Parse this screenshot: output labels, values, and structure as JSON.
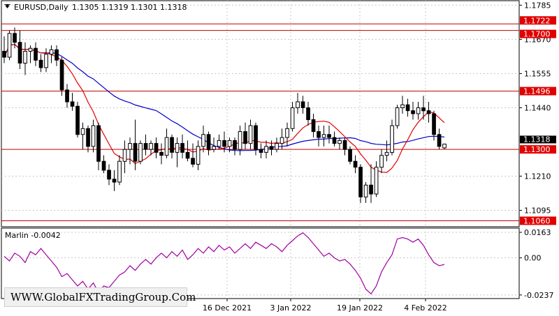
{
  "header": {
    "symbol_timeframe": "EURUSD,Daily",
    "ohlc": "1.1305 1.1319 1.1301 1.1318"
  },
  "indicator": {
    "title": "Marlin -0.0042",
    "levels": [
      "0.0163",
      "0.00",
      "-0.0237"
    ]
  },
  "price_axis": {
    "ticks": [
      "1.1785",
      "1.1670",
      "1.1555",
      "1.1440",
      "1.1210",
      "1.1095"
    ],
    "horizontal_level_tags": [
      "1.1722",
      "1.1700",
      "1.1496",
      "1.1300",
      "1.1060"
    ],
    "current_price_tag": "1.1318"
  },
  "time_axis": {
    "labels": [
      "16 Dec 2021",
      "3 Jan 2022",
      "19 Jan 2022",
      "4 Feb 2022"
    ]
  },
  "watermark": "WWW.GlobalFXTradingGroup.Com",
  "colors": {
    "background": "#ffffff",
    "grid": "#c8c8c8",
    "level_line": "#c00000",
    "level_tag": "#e00000",
    "fast_ma": "#e00000",
    "slow_ma": "#0000cc",
    "indicator_line": "#a000a0",
    "bull_candle": "#ffffff",
    "bear_candle": "#000000"
  },
  "chart_data": {
    "type": "candlestick",
    "symbol": "EURUSD",
    "timeframe": "Daily",
    "ylim": [
      1.104,
      1.18
    ],
    "horizontal_levels": [
      1.1722,
      1.17,
      1.1496,
      1.13,
      1.106
    ],
    "candles": [
      [
        1.163,
        1.168,
        1.159,
        1.161
      ],
      [
        1.161,
        1.17,
        1.16,
        1.169
      ],
      [
        1.169,
        1.171,
        1.164,
        1.166
      ],
      [
        1.166,
        1.17,
        1.157,
        1.159
      ],
      [
        1.159,
        1.166,
        1.155,
        1.163
      ],
      [
        1.163,
        1.165,
        1.159,
        1.164
      ],
      [
        1.164,
        1.166,
        1.158,
        1.16
      ],
      [
        1.16,
        1.162,
        1.156,
        1.1575
      ],
      [
        1.1575,
        1.164,
        1.156,
        1.162
      ],
      [
        1.162,
        1.165,
        1.159,
        1.1635
      ],
      [
        1.1635,
        1.165,
        1.158,
        1.16
      ],
      [
        1.16,
        1.161,
        1.148,
        1.15
      ],
      [
        1.15,
        1.152,
        1.144,
        1.146
      ],
      [
        1.146,
        1.149,
        1.143,
        1.1445
      ],
      [
        1.1445,
        1.146,
        1.134,
        1.135
      ],
      [
        1.135,
        1.139,
        1.13,
        1.137
      ],
      [
        1.137,
        1.138,
        1.129,
        1.131
      ],
      [
        1.131,
        1.14,
        1.129,
        1.138
      ],
      [
        1.138,
        1.139,
        1.123,
        1.126
      ],
      [
        1.126,
        1.128,
        1.122,
        1.123
      ],
      [
        1.123,
        1.125,
        1.118,
        1.12
      ],
      [
        1.12,
        1.123,
        1.116,
        1.119
      ],
      [
        1.119,
        1.128,
        1.118,
        1.126
      ],
      [
        1.126,
        1.133,
        1.122,
        1.13
      ],
      [
        1.13,
        1.134,
        1.125,
        1.132
      ],
      [
        1.132,
        1.14,
        1.123,
        1.126
      ],
      [
        1.126,
        1.133,
        1.125,
        1.132
      ],
      [
        1.132,
        1.135,
        1.128,
        1.13
      ],
      [
        1.13,
        1.133,
        1.128,
        1.132
      ],
      [
        1.132,
        1.134,
        1.127,
        1.129
      ],
      [
        1.129,
        1.132,
        1.125,
        1.128
      ],
      [
        1.128,
        1.137,
        1.127,
        1.134
      ],
      [
        1.134,
        1.135,
        1.127,
        1.129
      ],
      [
        1.129,
        1.134,
        1.124,
        1.132
      ],
      [
        1.132,
        1.135,
        1.127,
        1.129
      ],
      [
        1.129,
        1.133,
        1.126,
        1.127
      ],
      [
        1.127,
        1.132,
        1.124,
        1.125
      ],
      [
        1.125,
        1.133,
        1.123,
        1.131
      ],
      [
        1.131,
        1.138,
        1.129,
        1.135
      ],
      [
        1.135,
        1.136,
        1.128,
        1.13
      ],
      [
        1.13,
        1.134,
        1.129,
        1.131
      ],
      [
        1.131,
        1.135,
        1.13,
        1.133
      ],
      [
        1.133,
        1.136,
        1.129,
        1.131
      ],
      [
        1.131,
        1.134,
        1.129,
        1.133
      ],
      [
        1.133,
        1.134,
        1.128,
        1.13
      ],
      [
        1.13,
        1.138,
        1.128,
        1.136
      ],
      [
        1.136,
        1.139,
        1.13,
        1.132
      ],
      [
        1.132,
        1.14,
        1.13,
        1.138
      ],
      [
        1.138,
        1.139,
        1.128,
        1.13
      ],
      [
        1.13,
        1.132,
        1.127,
        1.129
      ],
      [
        1.129,
        1.133,
        1.127,
        1.131
      ],
      [
        1.131,
        1.133,
        1.128,
        1.13
      ],
      [
        1.13,
        1.134,
        1.129,
        1.132
      ],
      [
        1.132,
        1.137,
        1.13,
        1.134
      ],
      [
        1.134,
        1.139,
        1.131,
        1.137
      ],
      [
        1.137,
        1.146,
        1.136,
        1.144
      ],
      [
        1.144,
        1.149,
        1.142,
        1.146
      ],
      [
        1.146,
        1.148,
        1.142,
        1.144
      ],
      [
        1.144,
        1.146,
        1.138,
        1.14
      ],
      [
        1.14,
        1.142,
        1.134,
        1.136
      ],
      [
        1.136,
        1.138,
        1.131,
        1.134
      ],
      [
        1.134,
        1.138,
        1.131,
        1.135
      ],
      [
        1.135,
        1.138,
        1.132,
        1.134
      ],
      [
        1.134,
        1.136,
        1.131,
        1.132
      ],
      [
        1.132,
        1.134,
        1.13,
        1.133
      ],
      [
        1.133,
        1.134,
        1.128,
        1.13
      ],
      [
        1.13,
        1.131,
        1.125,
        1.126
      ],
      [
        1.126,
        1.128,
        1.122,
        1.124
      ],
      [
        1.124,
        1.125,
        1.112,
        1.114
      ],
      [
        1.114,
        1.119,
        1.112,
        1.118
      ],
      [
        1.118,
        1.125,
        1.112,
        1.115
      ],
      [
        1.115,
        1.126,
        1.114,
        1.124
      ],
      [
        1.124,
        1.13,
        1.122,
        1.128
      ],
      [
        1.128,
        1.133,
        1.126,
        1.129
      ],
      [
        1.129,
        1.14,
        1.128,
        1.138
      ],
      [
        1.138,
        1.145,
        1.137,
        1.144
      ],
      [
        1.144,
        1.148,
        1.142,
        1.145
      ],
      [
        1.145,
        1.147,
        1.141,
        1.143
      ],
      [
        1.143,
        1.146,
        1.14,
        1.142
      ],
      [
        1.142,
        1.146,
        1.14,
        1.144
      ],
      [
        1.144,
        1.148,
        1.14,
        1.143
      ],
      [
        1.143,
        1.146,
        1.139,
        1.142
      ],
      [
        1.142,
        1.143,
        1.133,
        1.135
      ],
      [
        1.135,
        1.137,
        1.13,
        1.131
      ],
      [
        1.1305,
        1.1319,
        1.1301,
        1.1318
      ]
    ],
    "indicator_series": {
      "name": "Marlin",
      "ylim": [
        -0.026,
        0.019
      ],
      "values": [
        0.001,
        -0.002,
        0.003,
        0.001,
        -0.003,
        0.004,
        0.002,
        0.006,
        0.002,
        -0.002,
        -0.006,
        -0.012,
        -0.01,
        -0.014,
        -0.018,
        -0.015,
        -0.02,
        -0.016,
        -0.022,
        -0.018,
        -0.019,
        -0.015,
        -0.011,
        -0.009,
        -0.005,
        -0.008,
        -0.004,
        -0.001,
        -0.004,
        0.0,
        0.003,
        0.0,
        0.004,
        0.001,
        0.005,
        -0.001,
        0.002,
        0.006,
        0.003,
        0.007,
        0.004,
        0.008,
        0.005,
        0.007,
        0.003,
        0.006,
        0.009,
        0.006,
        0.01,
        0.008,
        0.006,
        0.009,
        0.007,
        0.004,
        0.008,
        0.011,
        0.014,
        0.016,
        0.013,
        0.009,
        0.005,
        0.001,
        0.003,
        0.0,
        -0.002,
        -0.001,
        -0.004,
        -0.008,
        -0.013,
        -0.02,
        -0.023,
        -0.018,
        -0.009,
        -0.003,
        0.002,
        0.012,
        0.013,
        0.012,
        0.01,
        0.012,
        0.008,
        0.002,
        -0.003,
        -0.005,
        -0.0042
      ]
    }
  }
}
